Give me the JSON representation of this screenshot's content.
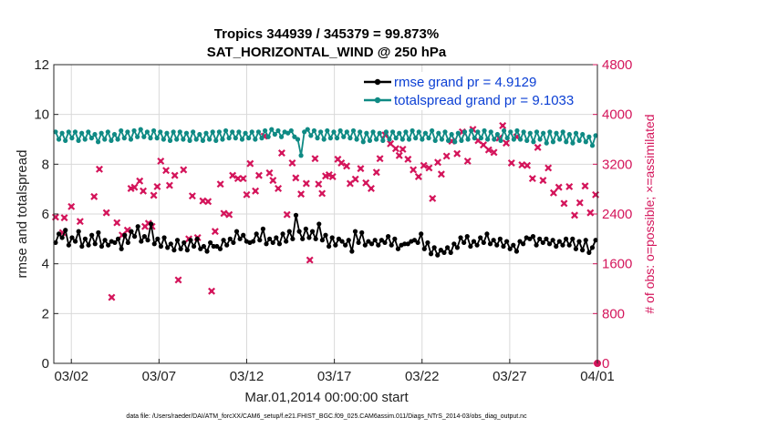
{
  "chart_data": {
    "type": "line",
    "title_line1": "Tropics 344939 / 345379 = 99.873%",
    "title_line2": "SAT_HORIZONTAL_WIND @ 250 hPa",
    "xlabel": "Mar.01,2014 00:00:00 start",
    "ylabel_left": "rmse and totalspread",
    "ylabel_right": "# of obs: o=possible; ×=assimilated",
    "footnote": "data file: /Users/raeder/DAI/ATM_forcXX/CAM6_setup/f.e21.FHIST_BGC.f09_025.CAM6assim.011/Diags_NTrS_2014-03/obs_diag_output.nc",
    "xlim": [
      0,
      31
    ],
    "ylim_left": [
      0,
      12
    ],
    "ylim_right": [
      0,
      4800
    ],
    "xticks": [
      1,
      6,
      11,
      16,
      21,
      26,
      31
    ],
    "xtick_labels": [
      "03/02",
      "03/07",
      "03/12",
      "03/17",
      "03/22",
      "03/27",
      "04/01"
    ],
    "yticks_left": [
      "0",
      "2",
      "4",
      "6",
      "8",
      "10",
      "12"
    ],
    "yticks_right": [
      "0",
      "800",
      "1600",
      "2400",
      "3200",
      "4000",
      "4800"
    ],
    "colors": {
      "rmse": "#000000",
      "spread": "#0f8a84",
      "obs": "#d4155b",
      "legend_text": "#0b3fd4",
      "grid": "#d9d9d9"
    },
    "series": [
      {
        "name": "rmse grand pr = 4.9129",
        "marker": "dot",
        "values": [
          4.85,
          5.2,
          5.05,
          5.35,
          4.75,
          5.05,
          4.9,
          5.3,
          4.7,
          5.0,
          4.75,
          5.15,
          4.8,
          5.25,
          4.7,
          4.95,
          4.75,
          4.9,
          4.85,
          5.0,
          4.6,
          5.15,
          4.85,
          5.3,
          5.1,
          5.5,
          4.9,
          5.1,
          4.95,
          5.6,
          4.8,
          5.0,
          4.7,
          5.05,
          4.65,
          4.8,
          4.55,
          4.95,
          4.6,
          4.85,
          4.55,
          4.95,
          4.7,
          5.0,
          4.6,
          4.7,
          4.5,
          4.85,
          4.7,
          4.7,
          4.6,
          4.95,
          4.75,
          5.0,
          4.85,
          5.3,
          5.0,
          5.15,
          4.9,
          4.85,
          4.9,
          5.2,
          4.95,
          5.4,
          4.8,
          5.0,
          4.85,
          5.05,
          4.8,
          5.2,
          4.9,
          5.3,
          5.0,
          5.95,
          5.3,
          5.0,
          5.4,
          5.05,
          5.3,
          5.0,
          5.6,
          4.95,
          5.15,
          4.7,
          5.05,
          4.75,
          5.0,
          4.9,
          4.75,
          4.95,
          4.5,
          5.3,
          4.85,
          5.25,
          4.75,
          4.9,
          4.8,
          4.95,
          4.75,
          4.95,
          4.85,
          5.1,
          4.75,
          5.0,
          4.6,
          4.75,
          4.8,
          4.8,
          4.9,
          4.95,
          4.85,
          5.2,
          4.6,
          4.85,
          4.4,
          4.65,
          4.35,
          4.55,
          4.45,
          4.65,
          4.45,
          4.8,
          4.65,
          5.05,
          4.85,
          5.1,
          4.7,
          4.9,
          4.75,
          5.05,
          4.85,
          5.2,
          4.8,
          4.95,
          4.75,
          5.0,
          4.7,
          4.9,
          4.6,
          4.75,
          4.5,
          4.9,
          4.8,
          5.05,
          5.0,
          5.1,
          4.75,
          5.0,
          4.85,
          5.0,
          4.8,
          4.95,
          4.7,
          4.9,
          4.75,
          5.0,
          4.75,
          5.0,
          4.6,
          4.9,
          4.55,
          4.95,
          4.45,
          4.65,
          4.95
        ]
      },
      {
        "name": "totalspread grand pr = 9.1033",
        "marker": "dot",
        "values": [
          9.3,
          9.0,
          9.25,
          8.95,
          9.3,
          9.05,
          9.3,
          8.95,
          9.25,
          9.0,
          9.3,
          9.05,
          9.2,
          8.9,
          9.25,
          9.0,
          9.3,
          8.95,
          9.2,
          9.0,
          9.35,
          9.05,
          9.3,
          9.0,
          9.35,
          9.1,
          9.4,
          9.1,
          9.3,
          9.05,
          9.35,
          9.05,
          9.3,
          9.0,
          9.25,
          8.95,
          9.3,
          9.0,
          9.3,
          9.0,
          9.25,
          8.95,
          9.3,
          9.0,
          9.2,
          8.95,
          9.25,
          9.0,
          9.3,
          8.95,
          9.3,
          9.0,
          9.35,
          9.05,
          9.3,
          9.05,
          9.3,
          9.0,
          9.25,
          9.05,
          9.3,
          9.0,
          9.3,
          9.05,
          9.35,
          9.1,
          9.4,
          9.2,
          9.35,
          9.1,
          9.3,
          9.25,
          9.35,
          9.1,
          9.0,
          8.35,
          9.3,
          9.4,
          9.15,
          9.35,
          9.05,
          9.3,
          9.0,
          9.35,
          9.05,
          9.3,
          9.05,
          9.35,
          9.1,
          9.3,
          9.05,
          9.35,
          9.0,
          9.3,
          8.9,
          9.25,
          8.95,
          9.3,
          9.0,
          9.25,
          8.95,
          9.3,
          9.0,
          9.3,
          9.05,
          9.25,
          9.0,
          9.3,
          9.0,
          9.35,
          9.05,
          9.3,
          9.0,
          9.25,
          9.05,
          9.35,
          8.95,
          9.25,
          9.0,
          9.3,
          8.95,
          9.2,
          8.9,
          9.25,
          8.95,
          9.3,
          9.0,
          9.35,
          9.05,
          9.3,
          9.05,
          9.35,
          9.0,
          9.3,
          9.0,
          9.2,
          8.95,
          9.35,
          9.05,
          9.3,
          9.0,
          9.35,
          9.0,
          9.3,
          8.95,
          9.25,
          8.9,
          9.3,
          9.0,
          9.25,
          8.85,
          9.3,
          8.9,
          9.25,
          9.0,
          9.3,
          8.9,
          9.2,
          8.85,
          9.25,
          8.95,
          9.2,
          8.9,
          9.1,
          8.75,
          9.15
        ]
      }
    ],
    "obs_assimilated": {
      "name": "assimilated",
      "marker": "x",
      "days": [
        0.1,
        0.5,
        0.6,
        1.0,
        1.5,
        2.3,
        2.6,
        3.0,
        3.3,
        3.6,
        3.9,
        4.2,
        4.4,
        4.6,
        4.9,
        5.1,
        5.2,
        5.4,
        5.6,
        5.7,
        5.9,
        6.1,
        6.4,
        6.6,
        6.9,
        7.1,
        7.4,
        7.7,
        7.9,
        8.2,
        8.5,
        8.8,
        9.0,
        9.2,
        9.5,
        9.7,
        10.0,
        10.2,
        10.5,
        10.8,
        11.0,
        11.2,
        11.5,
        11.7,
        12.0,
        12.3,
        12.5,
        12.8,
        13.0,
        13.3,
        13.6,
        13.8,
        14.1,
        14.4,
        14.6,
        14.9,
        15.1,
        15.3,
        15.5,
        15.7,
        15.9,
        16.2,
        16.4,
        16.7,
        16.9,
        17.2,
        17.5,
        17.8,
        18.1,
        18.4,
        18.6,
        18.9,
        19.2,
        19.5,
        19.7,
        19.9,
        20.2,
        20.5,
        20.8,
        21.1,
        21.4,
        21.6,
        21.9,
        22.1,
        22.4,
        22.7,
        23.0,
        23.3,
        23.6,
        23.9,
        24.2,
        24.5,
        24.8,
        25.1,
        25.4,
        25.6,
        25.8,
        26.1,
        26.4,
        26.7,
        27.0,
        27.3,
        27.6,
        27.9,
        28.2,
        28.5,
        28.8,
        29.1,
        29.4,
        29.7,
        30.0,
        30.3,
        30.6,
        30.9
      ],
      "counts": [
        2350,
        2100,
        2340,
        2520,
        2280,
        2680,
        3120,
        2420,
        1060,
        2260,
        2060,
        2140,
        2810,
        2830,
        2930,
        2770,
        2200,
        2250,
        2200,
        2700,
        2840,
        3250,
        3100,
        2860,
        3020,
        1340,
        3110,
        2000,
        2690,
        2020,
        2610,
        2600,
        1160,
        2120,
        2880,
        2410,
        2390,
        3020,
        2970,
        2970,
        2710,
        3210,
        2770,
        3020,
        3650,
        3060,
        2940,
        2810,
        3380,
        2390,
        3220,
        2980,
        2720,
        2890,
        1660,
        3290,
        2880,
        2730,
        3010,
        3030,
        3000,
        3280,
        3220,
        3170,
        2890,
        2960,
        3130,
        2900,
        2810,
        3070,
        3290,
        3670,
        3530,
        3450,
        3340,
        3440,
        3280,
        3110,
        3000,
        3180,
        3140,
        2650,
        3230,
        3040,
        3330,
        3570,
        3370,
        3720,
        3250,
        3760,
        3580,
        3510,
        3430,
        3390,
        3620,
        3820,
        3540,
        3220,
        3640,
        3190,
        3180,
        2970,
        3470,
        2940,
        3140,
        2740,
        2830,
        2570,
        2840,
        2380,
        2580,
        2850,
        2420,
        2710
      ]
    },
    "obs_possible": {
      "name": "possible",
      "marker": "o",
      "days": [
        31.0
      ],
      "counts": [
        0
      ]
    }
  }
}
